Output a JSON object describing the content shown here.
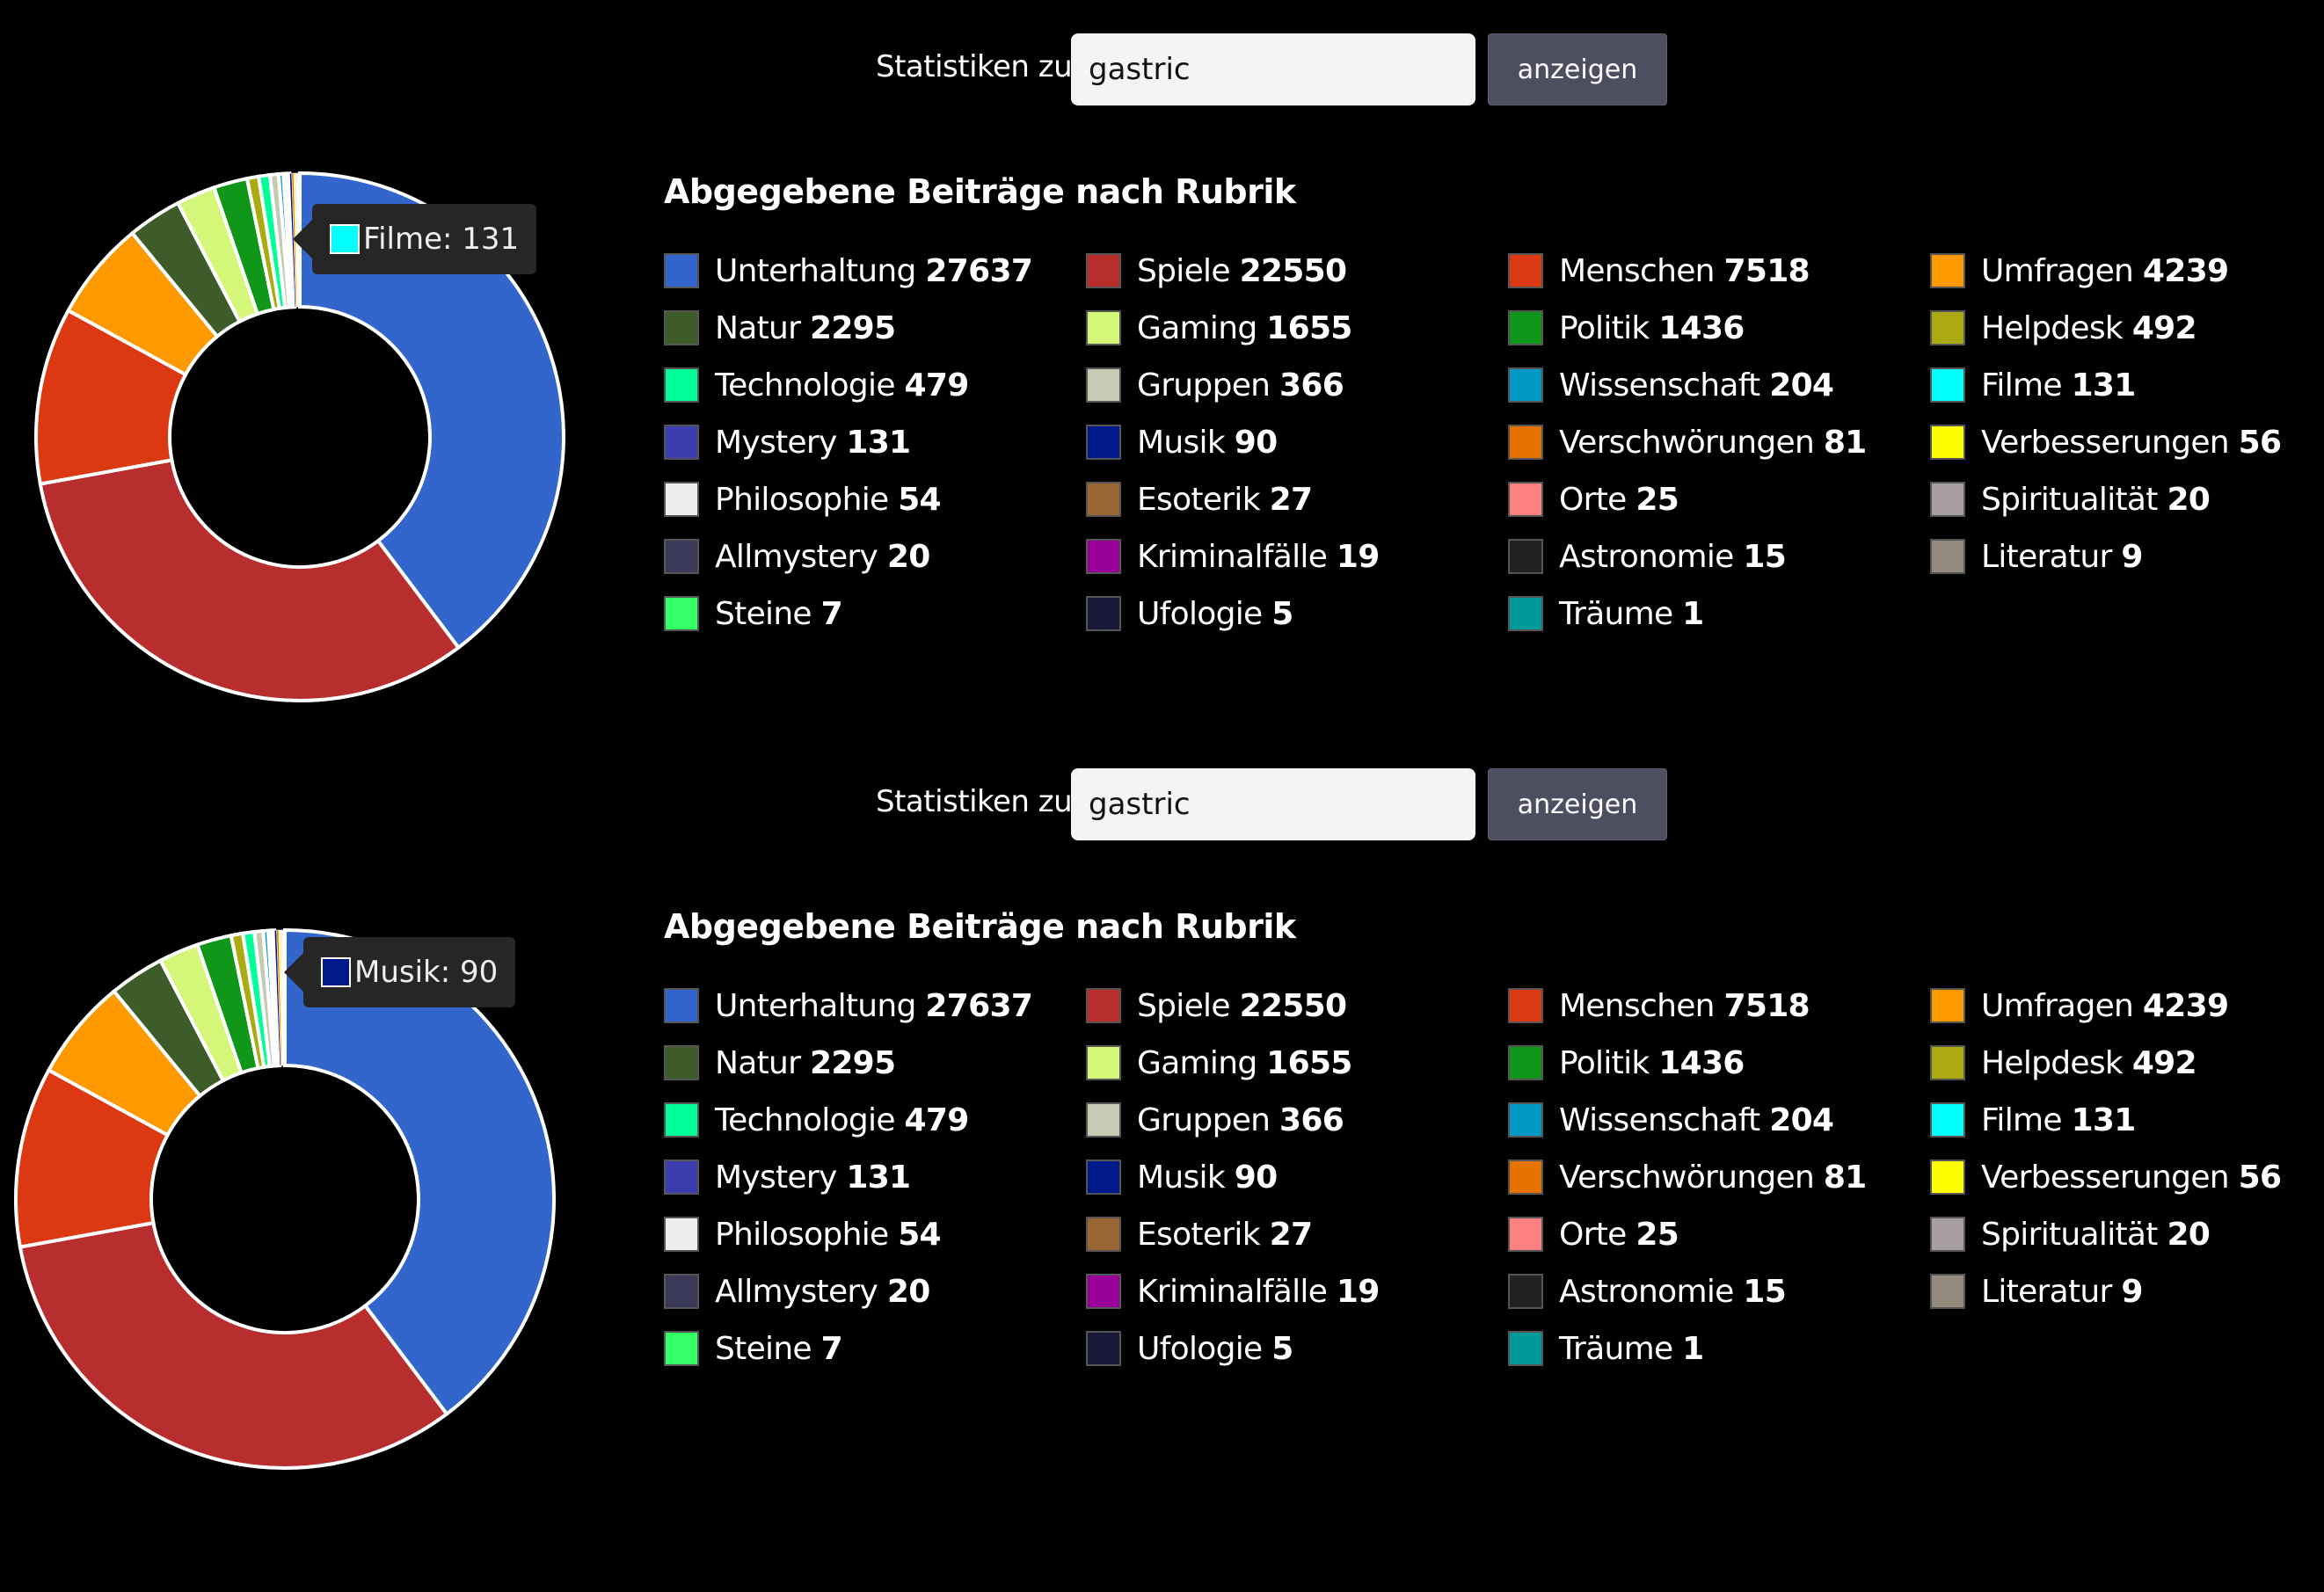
{
  "panels": [
    {
      "search": {
        "label": "Statistiken zu",
        "value": "gastric",
        "button": "anzeigen"
      },
      "heading": "Abgegebene Beiträge nach Rubrik",
      "tooltip": {
        "label": "Filme: 131",
        "color": "#00ffff"
      }
    },
    {
      "search": {
        "label": "Statistiken zu",
        "value": "gastric",
        "button": "anzeigen"
      },
      "heading": "Abgegebene Beiträge nach Rubrik",
      "tooltip": {
        "label": "Musik: 90",
        "color": "#001a8c"
      }
    }
  ],
  "chart_data": {
    "type": "pie",
    "donut": true,
    "legend_position": "right",
    "title": "Abgegebene Beiträge nach Rubrik",
    "categories": [
      "Unterhaltung",
      "Spiele",
      "Menschen",
      "Umfragen",
      "Natur",
      "Gaming",
      "Politik",
      "Helpdesk",
      "Technologie",
      "Gruppen",
      "Wissenschaft",
      "Filme",
      "Mystery",
      "Musik",
      "Verschwörungen",
      "Verbesserungen",
      "Philosophie",
      "Esoterik",
      "Orte",
      "Spiritualität",
      "Allmystery",
      "Kriminalfälle",
      "Astronomie",
      "Literatur",
      "Steine",
      "Ufologie",
      "Träume"
    ],
    "values": [
      27637,
      22550,
      7518,
      4239,
      2295,
      1655,
      1436,
      492,
      479,
      366,
      204,
      131,
      131,
      90,
      81,
      56,
      54,
      27,
      25,
      20,
      20,
      19,
      15,
      9,
      7,
      5,
      1
    ],
    "colors": [
      "#3366cc",
      "#b82e2e",
      "#dc3912",
      "#ff9900",
      "#3e5b2a",
      "#d4f77a",
      "#109618",
      "#aaaa11",
      "#00ff99",
      "#c5cbb2",
      "#0099c6",
      "#00ffff",
      "#3b3eac",
      "#001a8c",
      "#e67300",
      "#ffff00",
      "#eeeeee",
      "#996633",
      "#ff8080",
      "#a8a0a0",
      "#3a3a58",
      "#990099",
      "#222222",
      "#948a7e",
      "#33ff66",
      "#19193a",
      "#009999"
    ]
  }
}
